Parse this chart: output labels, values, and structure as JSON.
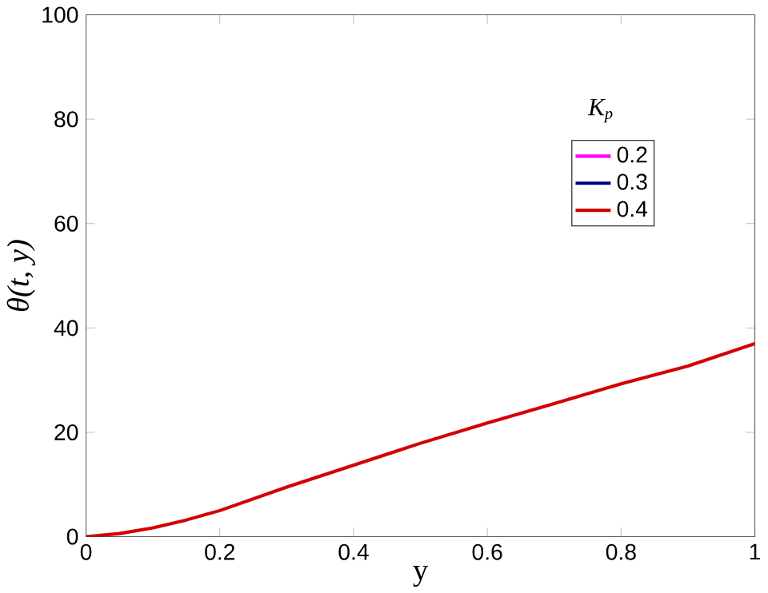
{
  "chart_data": {
    "type": "line",
    "xlabel": "y",
    "ylabel": "θ(t, y)",
    "legend_title": "K$_{p}$",
    "x": [
      0,
      0.05,
      0.1,
      0.15,
      0.2,
      0.3,
      0.4,
      0.5,
      0.6,
      0.7,
      0.8,
      0.9,
      1.0
    ],
    "series": [
      {
        "name": "0.2",
        "color": "#ff00ff",
        "values": [
          null,
          null,
          null,
          null,
          null,
          null,
          null,
          null,
          null,
          null,
          null,
          null,
          null
        ]
      },
      {
        "name": "0.3",
        "color": "#00008b",
        "values": [
          null,
          null,
          null,
          null,
          null,
          null,
          null,
          null,
          null,
          null,
          null,
          null,
          null
        ]
      },
      {
        "name": "0.4",
        "color": "#d40000",
        "values": [
          0,
          0.6,
          1.7,
          3.2,
          5,
          9.5,
          13.7,
          17.9,
          21.8,
          25.5,
          29.3,
          32.7,
          37
        ]
      }
    ],
    "xlim": [
      0,
      1
    ],
    "ylim": [
      0,
      100
    ],
    "xticks": [
      0,
      0.2,
      0.4,
      0.6,
      0.8,
      1
    ],
    "yticks": [
      0,
      20,
      40,
      60,
      80,
      100
    ],
    "legend": "top right",
    "marker": "none",
    "line_style": "solid",
    "grid": false
  }
}
